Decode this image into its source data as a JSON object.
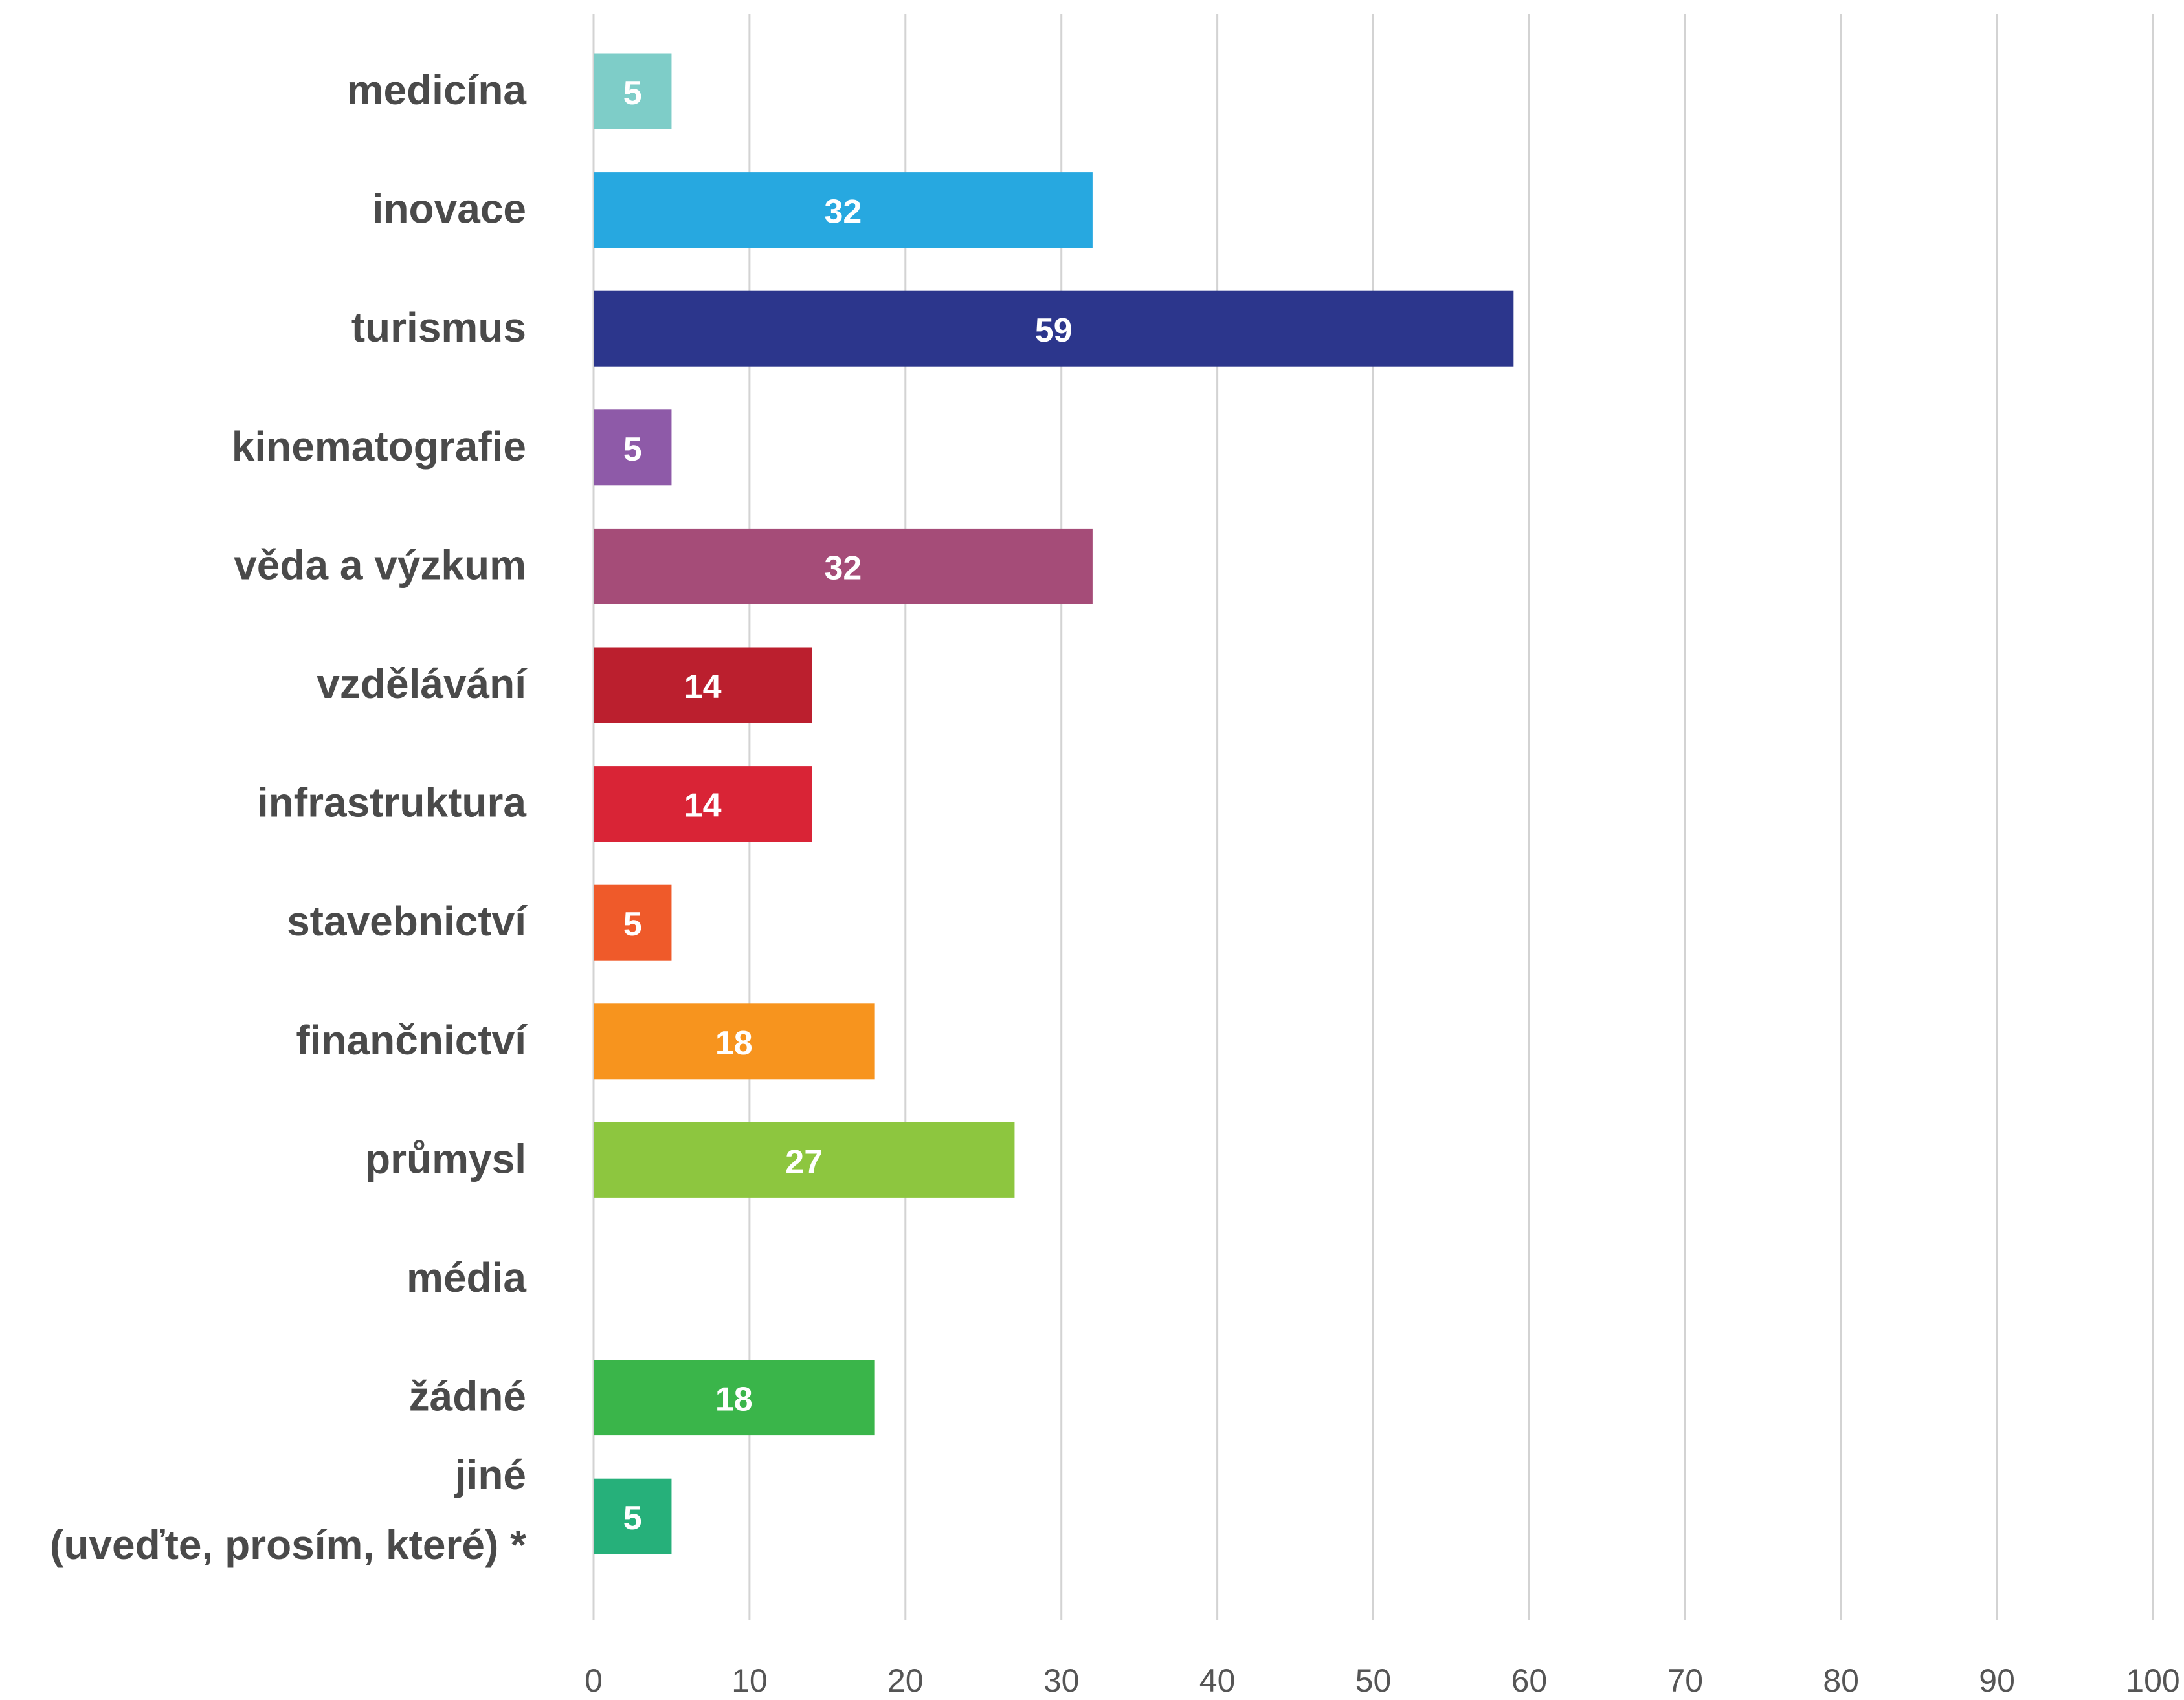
{
  "chart_data": {
    "type": "bar",
    "orientation": "horizontal",
    "categories": [
      [
        "medicína"
      ],
      [
        "inovace"
      ],
      [
        "turismus"
      ],
      [
        "kinematografie"
      ],
      [
        "věda a výzkum"
      ],
      [
        "vzdělávání"
      ],
      [
        "infrastruktura"
      ],
      [
        "stavebnictví"
      ],
      [
        "finančnictví"
      ],
      [
        "průmysl"
      ],
      [
        "média"
      ],
      [
        "žádné"
      ],
      [
        "jiné",
        "(uveďte, prosím, které) *"
      ]
    ],
    "values": [
      5,
      32,
      59,
      5,
      32,
      14,
      14,
      5,
      18,
      27,
      null,
      18,
      5
    ],
    "value_labels": [
      "5",
      "32",
      "59",
      "5",
      "32",
      "14",
      "14",
      "5",
      "18",
      "27",
      "",
      "18",
      "5"
    ],
    "colors": [
      "#7ecdc8",
      "#27a8e0",
      "#2c368c",
      "#8e5aa8",
      "#a54c78",
      "#bb1f2e",
      "#d92436",
      "#ef5a2a",
      "#f7941e",
      "#8dc63f",
      "#cccccc",
      "#3ab54a",
      "#26b07a"
    ],
    "xlim": [
      0,
      100
    ],
    "x_ticks": [
      0,
      10,
      20,
      30,
      40,
      50,
      60,
      70,
      80,
      90,
      100
    ],
    "x_tick_labels": [
      "0",
      "10",
      "20",
      "30",
      "40",
      "50",
      "60",
      "70",
      "80",
      "90",
      "100"
    ],
    "grid": "vertical",
    "title": "",
    "xlabel": "",
    "ylabel": ""
  }
}
